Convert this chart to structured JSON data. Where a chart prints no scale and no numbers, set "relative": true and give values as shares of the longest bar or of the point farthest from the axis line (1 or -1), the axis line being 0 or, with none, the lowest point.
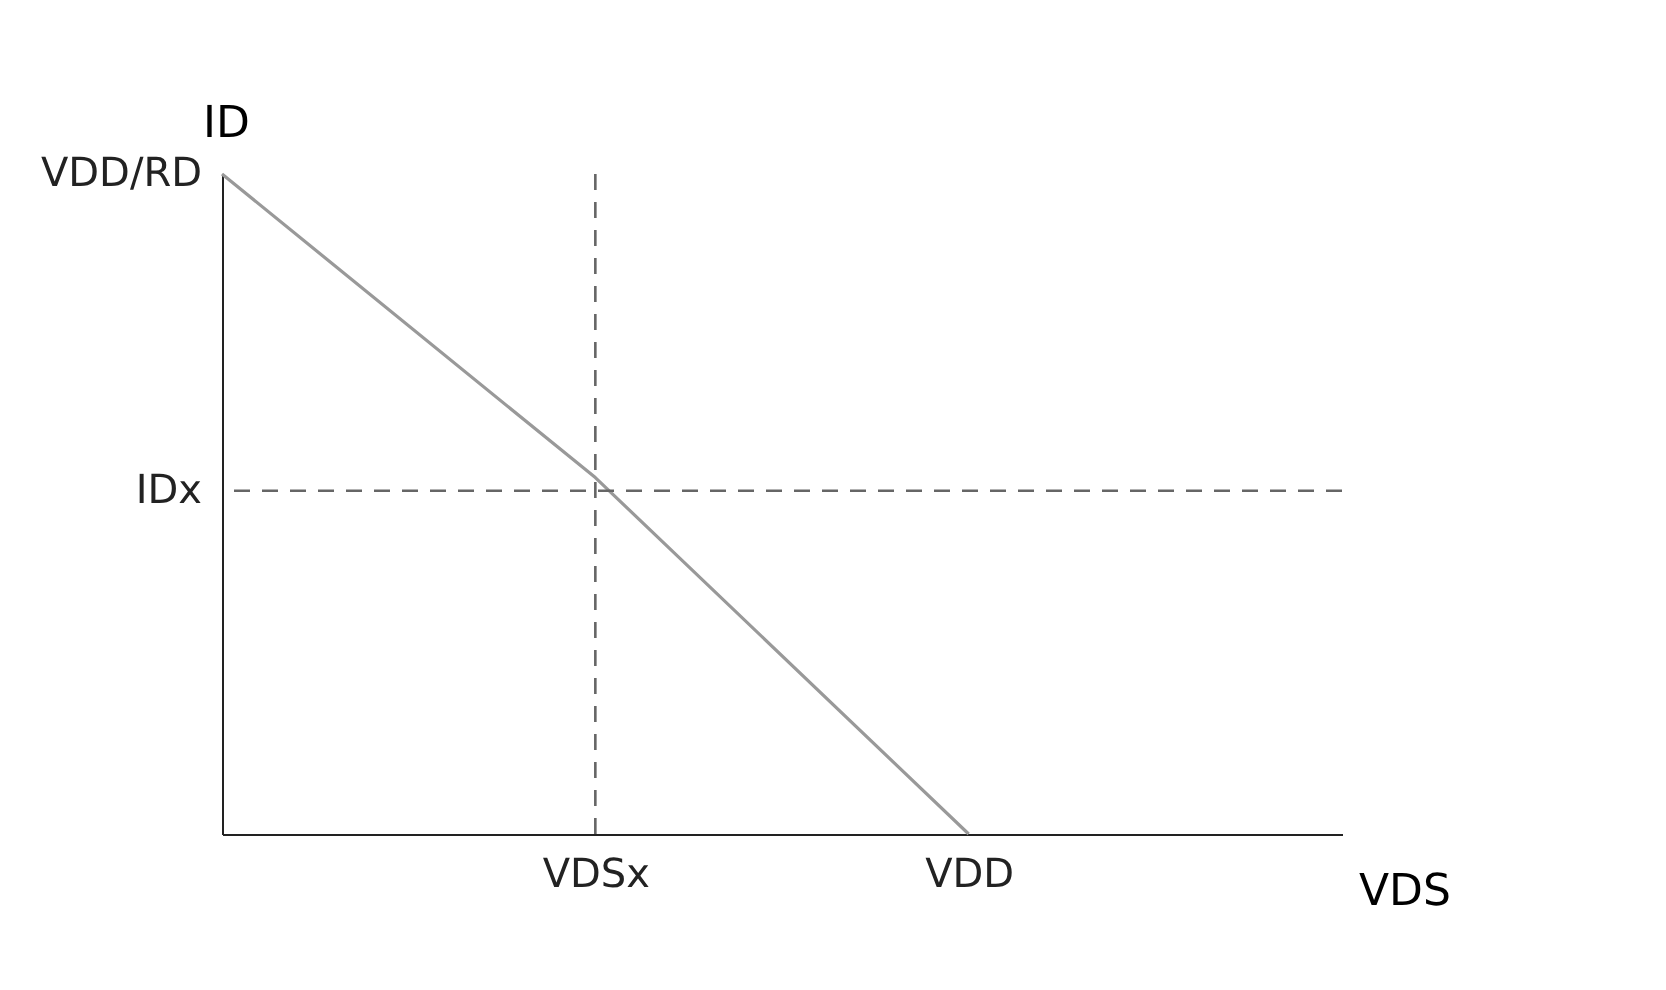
{
  "chart_data": {
    "type": "line",
    "xlabel": "VDS",
    "ylabel": "ID",
    "relative": true,
    "categories": [
      null,
      "VDSx",
      "VDD",
      null
    ],
    "series": [
      {
        "color": "#999999",
        "values": [
          1,
          0.54,
          0,
          null
        ]
      }
    ],
    "ref_lines": [
      {
        "axis": "x",
        "value": "VDSx",
        "color": "#666666",
        "line_style": "dashed"
      },
      {
        "axis": "y",
        "value": 0.52,
        "label": "IDx",
        "color": "#666666",
        "line_style": "dashed"
      }
    ],
    "annotations": [
      "VDD/RD"
    ]
  }
}
